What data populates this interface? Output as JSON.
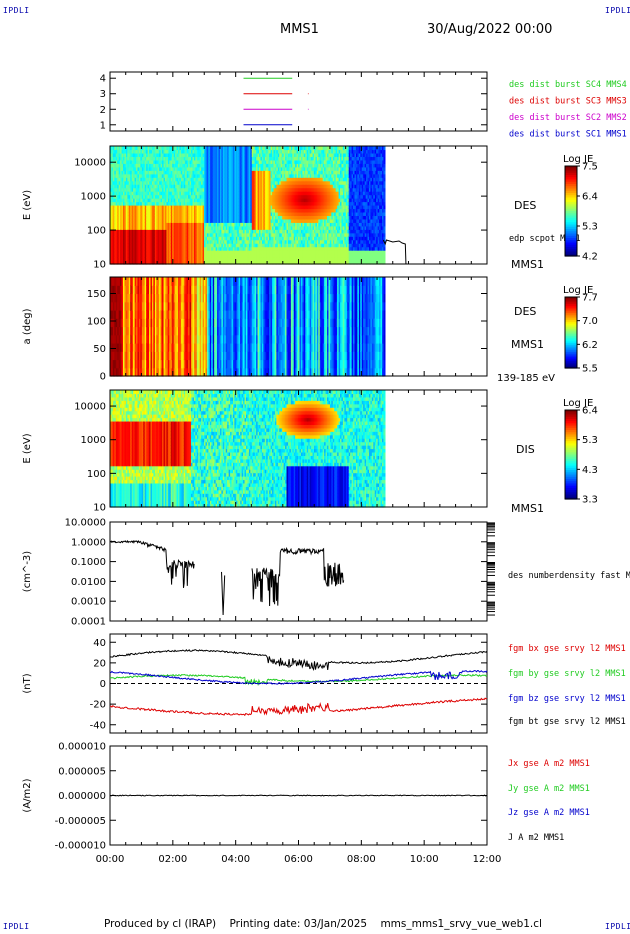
{
  "header": {
    "corner_tl": "IPDLI",
    "corner_tr": "IPDLI",
    "corner_bl": "IPDLI",
    "corner_br": "IPDLI",
    "spacecraft": "MMS1",
    "date": "30/Aug/2022 00:00"
  },
  "footer": {
    "produced": "Produced by cl (IRAP)",
    "printing_date": "Printing date: 03/Jan/2025",
    "filename": "mms_mms1_srvy_vue_web1.cl"
  },
  "colors": {
    "blue": "#0000cc",
    "magenta": "#cc00cc",
    "red": "#dd0000",
    "green": "#22cc22",
    "black": "#000000"
  },
  "chart_data": [
    {
      "type": "line",
      "panel": "burst-availability",
      "yticks": [
        "1",
        "2",
        "3",
        "4"
      ],
      "ylim": [
        0.6,
        4.4
      ],
      "legend": [
        {
          "label": "des dist burst SC1 MMS1",
          "color": "#0000cc",
          "level": 1
        },
        {
          "label": "des dist burst SC2 MMS2",
          "color": "#cc00cc",
          "level": 2
        },
        {
          "label": "des dist burst SC3 MMS3",
          "color": "#dd0000",
          "level": 3
        },
        {
          "label": "des dist burst SC4 MMS4",
          "color": "#22cc22",
          "level": 4
        }
      ],
      "segments": [
        {
          "level": 4,
          "start": 4.25,
          "end": 5.8
        },
        {
          "level": 3,
          "start": 4.25,
          "end": 5.8
        },
        {
          "level": 3,
          "start": 6.3,
          "end": 6.32
        },
        {
          "level": 2,
          "start": 4.25,
          "end": 5.8
        },
        {
          "level": 2,
          "start": 6.3,
          "end": 6.32
        },
        {
          "level": 1,
          "start": 4.25,
          "end": 5.8
        }
      ]
    },
    {
      "type": "heatmap",
      "panel": "des-energy",
      "ylabel": "E (eV)",
      "yticks": [
        "10",
        "100",
        "1000",
        "10000"
      ],
      "ylim": [
        10,
        30000
      ],
      "label": "DES",
      "sc_label": "MMS1",
      "colorbar": {
        "title": "Log JE",
        "ticks": [
          "7.5",
          "6.4",
          "5.3",
          "4.2"
        ],
        "min": 4.2,
        "max": 7.5
      },
      "overlay_label": "edp scpot MMS1",
      "data_end_hours": 8.75
    },
    {
      "type": "heatmap",
      "panel": "des-pitch-angle",
      "ylabel": "a (deg)",
      "yticks": [
        "0",
        "50",
        "100",
        "150"
      ],
      "ylim": [
        0,
        180
      ],
      "label": "DES",
      "sc_label": "MMS1",
      "energy_range": "139-185 eV",
      "colorbar": {
        "title": "Log JE",
        "ticks": [
          "7.7",
          "7.0",
          "6.2",
          "5.5"
        ],
        "min": 5.5,
        "max": 7.7
      },
      "data_end_hours": 8.75
    },
    {
      "type": "heatmap",
      "panel": "dis-energy",
      "ylabel": "E (eV)",
      "yticks": [
        "10",
        "100",
        "1000",
        "10000"
      ],
      "ylim": [
        10,
        30000
      ],
      "label": "DIS",
      "sc_label": "MMS1",
      "colorbar": {
        "title": "Log JE",
        "ticks": [
          "6.4",
          "5.3",
          "4.3",
          "3.3"
        ],
        "min": 3.3,
        "max": 6.4
      },
      "data_end_hours": 8.75
    },
    {
      "type": "line",
      "panel": "density",
      "ylabel": "(cm^-3)",
      "yticks": [
        "0.0001",
        "0.0010",
        "0.0100",
        "0.1000",
        "1.0000",
        "10.0000"
      ],
      "ylim": [
        0.0001,
        10
      ],
      "log": true,
      "series": [
        {
          "name": "des numberdensity fast M",
          "color": "#000000"
        }
      ]
    },
    {
      "type": "line",
      "panel": "magnetic-field",
      "ylabel": "(nT)",
      "yticks": [
        "-40",
        "-20",
        "0",
        "20",
        "40"
      ],
      "ylim": [
        -48,
        48
      ],
      "series": [
        {
          "name": "fgm bx gse srvy l2 MMS1",
          "color": "#dd0000"
        },
        {
          "name": "fgm by gse srvy l2 MMS1",
          "color": "#22cc22"
        },
        {
          "name": "fgm bz gse srvy l2 MMS1",
          "color": "#0000cc"
        },
        {
          "name": "fgm bt gse srvy l2 MMS1",
          "color": "#000000"
        }
      ]
    },
    {
      "type": "line",
      "panel": "current-density",
      "ylabel": "(A/m2)",
      "yticks": [
        "-0.000010",
        "-0.000005",
        "0.000000",
        "0.000005",
        "0.000010"
      ],
      "ylim": [
        -1e-05,
        1e-05
      ],
      "series": [
        {
          "name": "Jx gse A m2 MMS1",
          "color": "#dd0000"
        },
        {
          "name": "Jy gse A m2 MMS1",
          "color": "#22cc22"
        },
        {
          "name": "Jz gse A m2 MMS1",
          "color": "#0000cc"
        },
        {
          "name": "J A m2 MMS1",
          "color": "#000000"
        }
      ]
    }
  ],
  "xaxis": {
    "ticks": [
      "00:00",
      "02:00",
      "04:00",
      "06:00",
      "08:00",
      "10:00",
      "12:00"
    ],
    "xlim": [
      0,
      12
    ]
  }
}
